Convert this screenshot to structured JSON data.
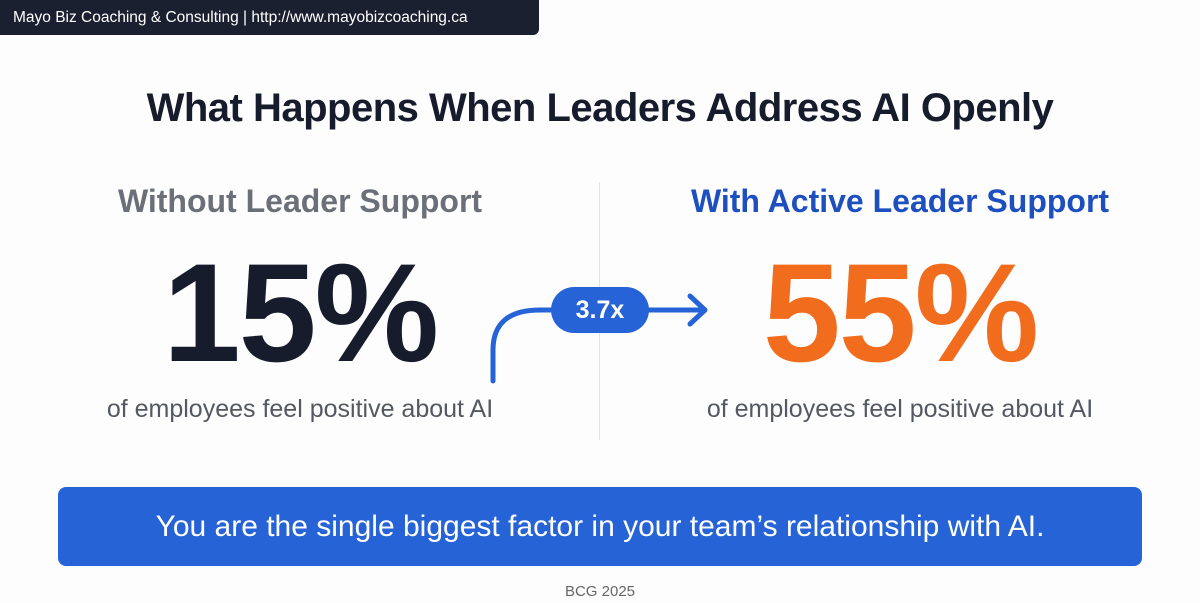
{
  "banner": {
    "text": "Mayo Biz Coaching & Consulting | http://www.mayobizcoaching.ca"
  },
  "title": "What Happens When Leaders Address AI Openly",
  "left": {
    "heading": "Without Leader Support",
    "value": "15%",
    "caption": "of employees feel positive about AI"
  },
  "right": {
    "heading": "With Active Leader Support",
    "value": "55%",
    "caption": "of employees feel positive about AI"
  },
  "multiplier": {
    "label": "3.7x",
    "icon": "curved-arrow-right-icon"
  },
  "callout": "You are the single biggest factor in your team’s relationship with AI.",
  "source": "BCG 2025",
  "colors": {
    "dark": "#161c2c",
    "blue": "#2563d6",
    "heading_blue": "#1d4fbf",
    "orange": "#f26c1d",
    "gray": "#6b6f78"
  }
}
